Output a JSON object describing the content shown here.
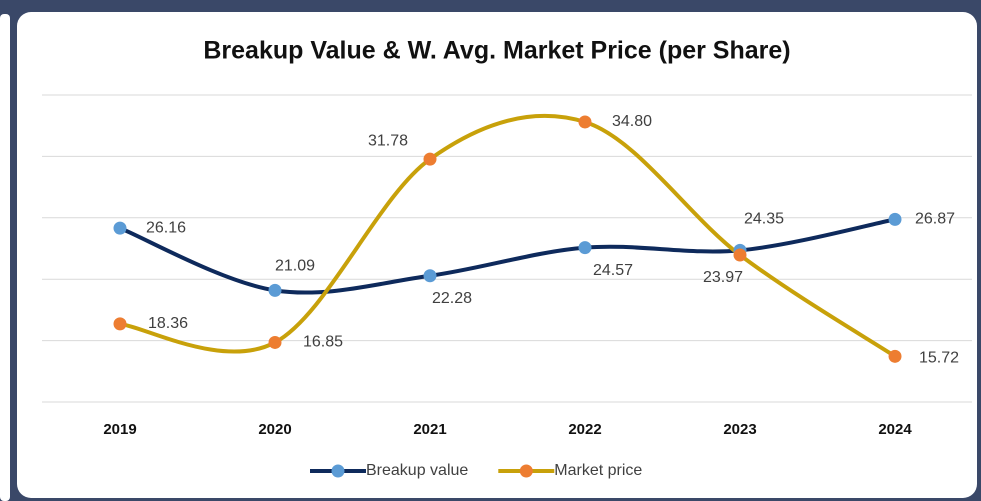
{
  "chart_data": {
    "type": "line",
    "title": "Breakup Value & W. Avg. Market Price (per Share)",
    "categories": [
      "2019",
      "2020",
      "2021",
      "2022",
      "2023",
      "2024"
    ],
    "series": [
      {
        "name": "Breakup value",
        "color": "#0e2a5c",
        "marker_color": "#5b9bd5",
        "values": [
          26.16,
          21.09,
          22.28,
          24.57,
          24.35,
          26.87
        ],
        "value_labels": [
          "26.16",
          "21.09",
          "22.28",
          "24.57",
          "24.35",
          "26.87"
        ]
      },
      {
        "name": "Market price",
        "color": "#c8a10a",
        "marker_color": "#ed7d31",
        "values": [
          18.36,
          16.85,
          31.78,
          34.8,
          23.97,
          15.72
        ],
        "value_labels": [
          "18.36",
          "16.85",
          "31.78",
          "34.80",
          "23.97",
          "15.72"
        ]
      }
    ],
    "ylim": [
      12,
      37
    ],
    "yticks": [
      12,
      17,
      22,
      27,
      32,
      37
    ],
    "grid": true,
    "smooth": true,
    "legend": "bottom"
  }
}
